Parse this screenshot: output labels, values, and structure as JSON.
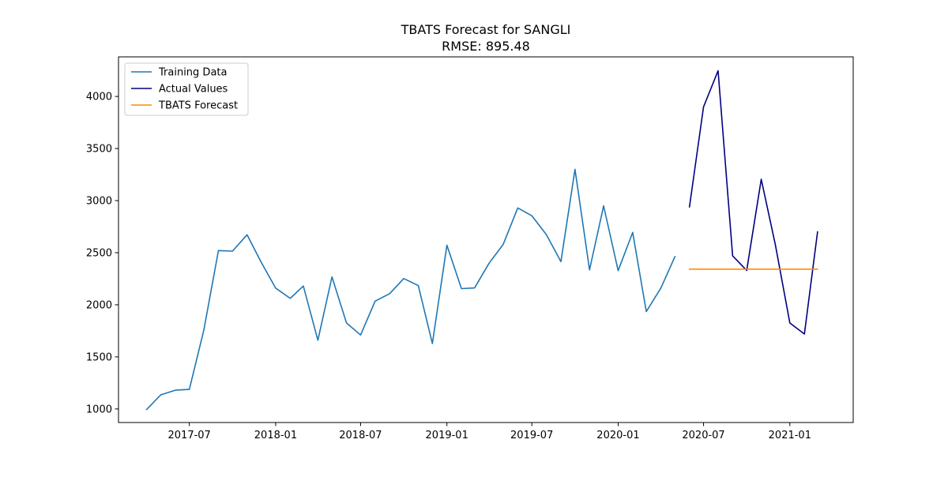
{
  "chart_data": {
    "type": "line",
    "title": "TBATS Forecast for SANGLI",
    "subtitle": "RMSE: 895.48",
    "xlabel": "",
    "ylabel": "",
    "ylim": [
      870,
      4380
    ],
    "xlim": [
      "2017-01-31",
      "2021-05-16"
    ],
    "y_ticks": [
      1000,
      1500,
      2000,
      2500,
      3000,
      3500,
      4000
    ],
    "x_ticks": [
      {
        "date": "2017-07-01",
        "label": "2017-07"
      },
      {
        "date": "2018-01-01",
        "label": "2018-01"
      },
      {
        "date": "2018-07-01",
        "label": "2018-07"
      },
      {
        "date": "2019-01-01",
        "label": "2019-01"
      },
      {
        "date": "2019-07-01",
        "label": "2019-07"
      },
      {
        "date": "2020-01-01",
        "label": "2020-01"
      },
      {
        "date": "2020-07-01",
        "label": "2020-07"
      },
      {
        "date": "2021-01-01",
        "label": "2021-01"
      }
    ],
    "grid": false,
    "legend_position": "top-left",
    "series": [
      {
        "name": "Training Data",
        "color": "#1f77b4",
        "x": [
          "2017-04-01",
          "2017-05-01",
          "2017-06-01",
          "2017-07-01",
          "2017-08-01",
          "2017-09-01",
          "2017-10-01",
          "2017-11-01",
          "2017-12-01",
          "2018-01-01",
          "2018-02-01",
          "2018-03-01",
          "2018-04-01",
          "2018-05-01",
          "2018-06-01",
          "2018-07-01",
          "2018-08-01",
          "2018-09-01",
          "2018-10-01",
          "2018-11-01",
          "2018-12-01",
          "2019-01-01",
          "2019-02-01",
          "2019-03-01",
          "2019-04-01",
          "2019-05-01",
          "2019-06-01",
          "2019-07-01",
          "2019-08-01",
          "2019-09-01",
          "2019-10-01",
          "2019-11-01",
          "2019-12-01",
          "2020-01-01",
          "2020-02-01",
          "2020-03-01",
          "2020-04-01",
          "2020-05-01"
        ],
        "values": [
          995,
          1135,
          1180,
          1188,
          1760,
          2520,
          2515,
          2672,
          2410,
          2160,
          2062,
          2180,
          1660,
          2268,
          1825,
          1710,
          2035,
          2107,
          2252,
          2185,
          1628,
          2572,
          2155,
          2162,
          2400,
          2580,
          2930,
          2855,
          2673,
          2415,
          3300,
          2335,
          2950,
          2328,
          2695,
          1935,
          2160,
          2462
        ]
      },
      {
        "name": "Actual Values",
        "color": "#000080",
        "x": [
          "2020-06-01",
          "2020-07-01",
          "2020-08-01",
          "2020-09-01",
          "2020-10-01",
          "2020-11-01",
          "2020-12-01",
          "2021-01-01",
          "2021-02-01",
          "2021-03-01"
        ],
        "values": [
          2940,
          3900,
          4247,
          2470,
          2330,
          3205,
          2578,
          1825,
          1720,
          2700
        ]
      },
      {
        "name": "TBATS Forecast",
        "color": "#ff8c00",
        "x": [
          "2020-06-01",
          "2020-07-01",
          "2020-08-01",
          "2020-09-01",
          "2020-10-01",
          "2020-11-01",
          "2020-12-01",
          "2021-01-01",
          "2021-02-01",
          "2021-03-01"
        ],
        "values": [
          2342,
          2342,
          2342,
          2342,
          2342,
          2342,
          2342,
          2342,
          2342,
          2342
        ]
      }
    ]
  }
}
